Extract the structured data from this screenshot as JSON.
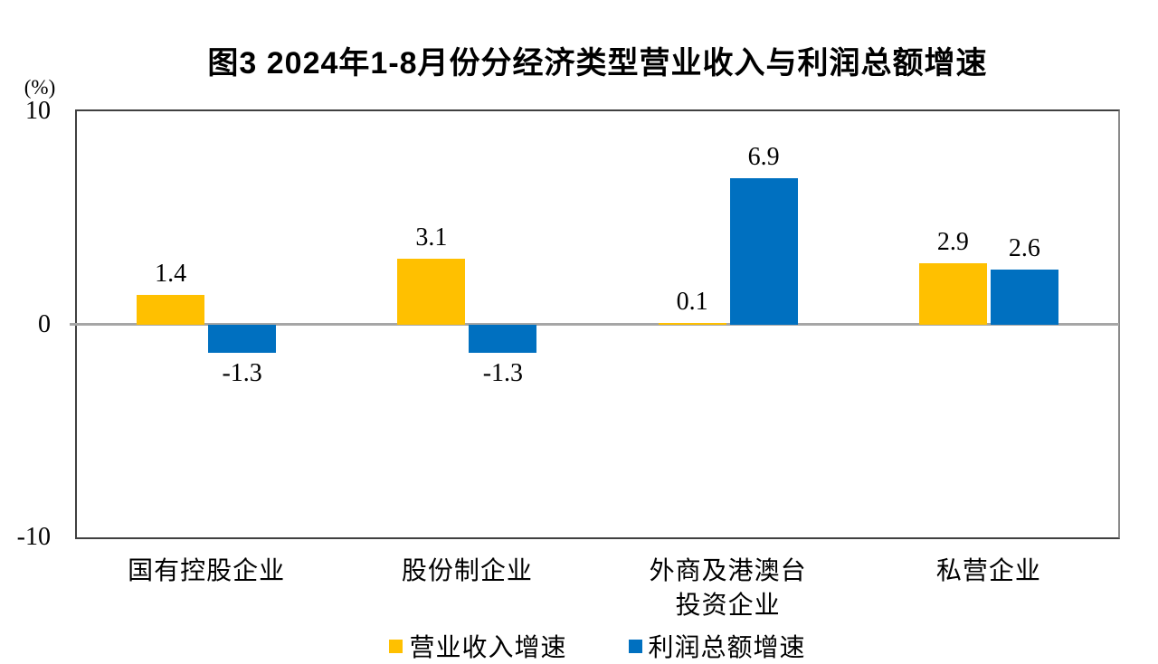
{
  "chart_data": {
    "type": "bar",
    "title": "图3 2024年1-8月份分经济类型营业收入与利润总额增速",
    "unit_label": "(%)",
    "categories": [
      "国有控股企业",
      "股份制企业",
      "外商及港澳台\n投资企业",
      "私营企业"
    ],
    "series": [
      {
        "name": "营业收入增速",
        "color": "#FFC000",
        "values": [
          1.4,
          3.1,
          0.1,
          2.9
        ]
      },
      {
        "name": "利润总额增速",
        "color": "#0070C0",
        "values": [
          -1.3,
          -1.3,
          6.9,
          2.6
        ]
      }
    ],
    "ylim": [
      -10,
      10
    ],
    "yticks": [
      10,
      0,
      -10
    ],
    "grid": false,
    "legend_position": "bottom",
    "value_label_format": "one-decimal",
    "colors": {
      "zero_line": "#A6A6A6",
      "frame": "#404040",
      "text": "#000000",
      "background": "#FFFFFF"
    }
  }
}
